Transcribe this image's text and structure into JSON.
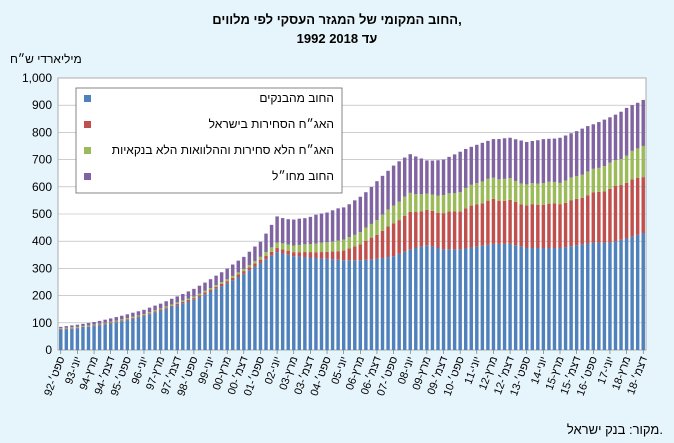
{
  "chart_data": {
    "type": "bar",
    "stacked": true,
    "title": "החוב המקומי של המגזר העסקי לפי מלווים,",
    "subtitle": "1992 עד 2018",
    "ylabel": "מיליארדי ש״ח",
    "ylim": [
      0,
      1000
    ],
    "yticks": [
      "0",
      "100",
      "200",
      "300",
      "400",
      "500",
      "600",
      "700",
      "800",
      "900",
      "1,000"
    ],
    "grid": true,
    "legend_position": "top-left",
    "x": [
      "ספט׳-92",
      "יוני-93",
      "מרץ-94",
      "דצמ׳-94",
      "ספט׳-95",
      "יוני-96",
      "מרץ-97",
      "דצמ׳-97",
      "ספט׳-98",
      "יוני-99",
      "מרץ-00",
      "דצמ׳-00",
      "ספט׳-01",
      "יוני-02",
      "מרץ-03",
      "דצמ׳-03",
      "ספט׳-04",
      "יוני-05",
      "מרץ-06",
      "דצמ׳-06",
      "ספט׳-07",
      "יוני-08",
      "מרץ-09",
      "דצמ׳-09",
      "ספט׳-10",
      "יוני-11",
      "מרץ-12",
      "דצמ׳-12",
      "ספט׳-13",
      "יוני-14",
      "מרץ-15",
      "דצמ׳-15",
      "ספט׳-16",
      "יוני-17",
      "מרץ-18",
      "דצמ׳-18"
    ],
    "series": [
      {
        "name": "החוב מהבנקים",
        "color": "#4f81bd",
        "values": [
          75,
          80,
          88,
          98,
          110,
          125,
          145,
          165,
          185,
          215,
          245,
          280,
          320,
          360,
          345,
          340,
          335,
          330,
          330,
          335,
          345,
          370,
          385,
          370,
          370,
          380,
          390,
          390,
          375,
          375,
          375,
          385,
          395,
          395,
          410,
          430
        ]
      },
      {
        "name": "האג״ח הסחירות בישראל",
        "color": "#c0504d",
        "values": [
          2,
          2,
          2,
          3,
          3,
          3,
          4,
          5,
          6,
          7,
          8,
          10,
          12,
          15,
          15,
          20,
          25,
          35,
          60,
          90,
          120,
          135,
          130,
          135,
          140,
          155,
          165,
          160,
          155,
          160,
          165,
          170,
          180,
          195,
          210,
          210
        ]
      },
      {
        "name": "האג״ח הלא סחירות וההלוואות הלא בנקאיות",
        "color": "#9bbb59",
        "values": [
          3,
          3,
          3,
          3,
          4,
          4,
          4,
          5,
          5,
          6,
          7,
          8,
          10,
          20,
          25,
          30,
          35,
          40,
          45,
          55,
          65,
          70,
          60,
          65,
          70,
          80,
          80,
          80,
          75,
          80,
          80,
          85,
          85,
          95,
          100,
          115
        ]
      },
      {
        "name": "החוב מחו״ל",
        "color": "#8064a2",
        "values": [
          5,
          8,
          10,
          12,
          14,
          16,
          18,
          22,
          28,
          32,
          40,
          45,
          55,
          95,
          95,
          100,
          110,
          120,
          130,
          140,
          145,
          145,
          125,
          130,
          145,
          140,
          145,
          150,
          155,
          160,
          165,
          165,
          165,
          170,
          175,
          165
        ]
      }
    ]
  },
  "source_text": "מקור: בנק ישראל."
}
